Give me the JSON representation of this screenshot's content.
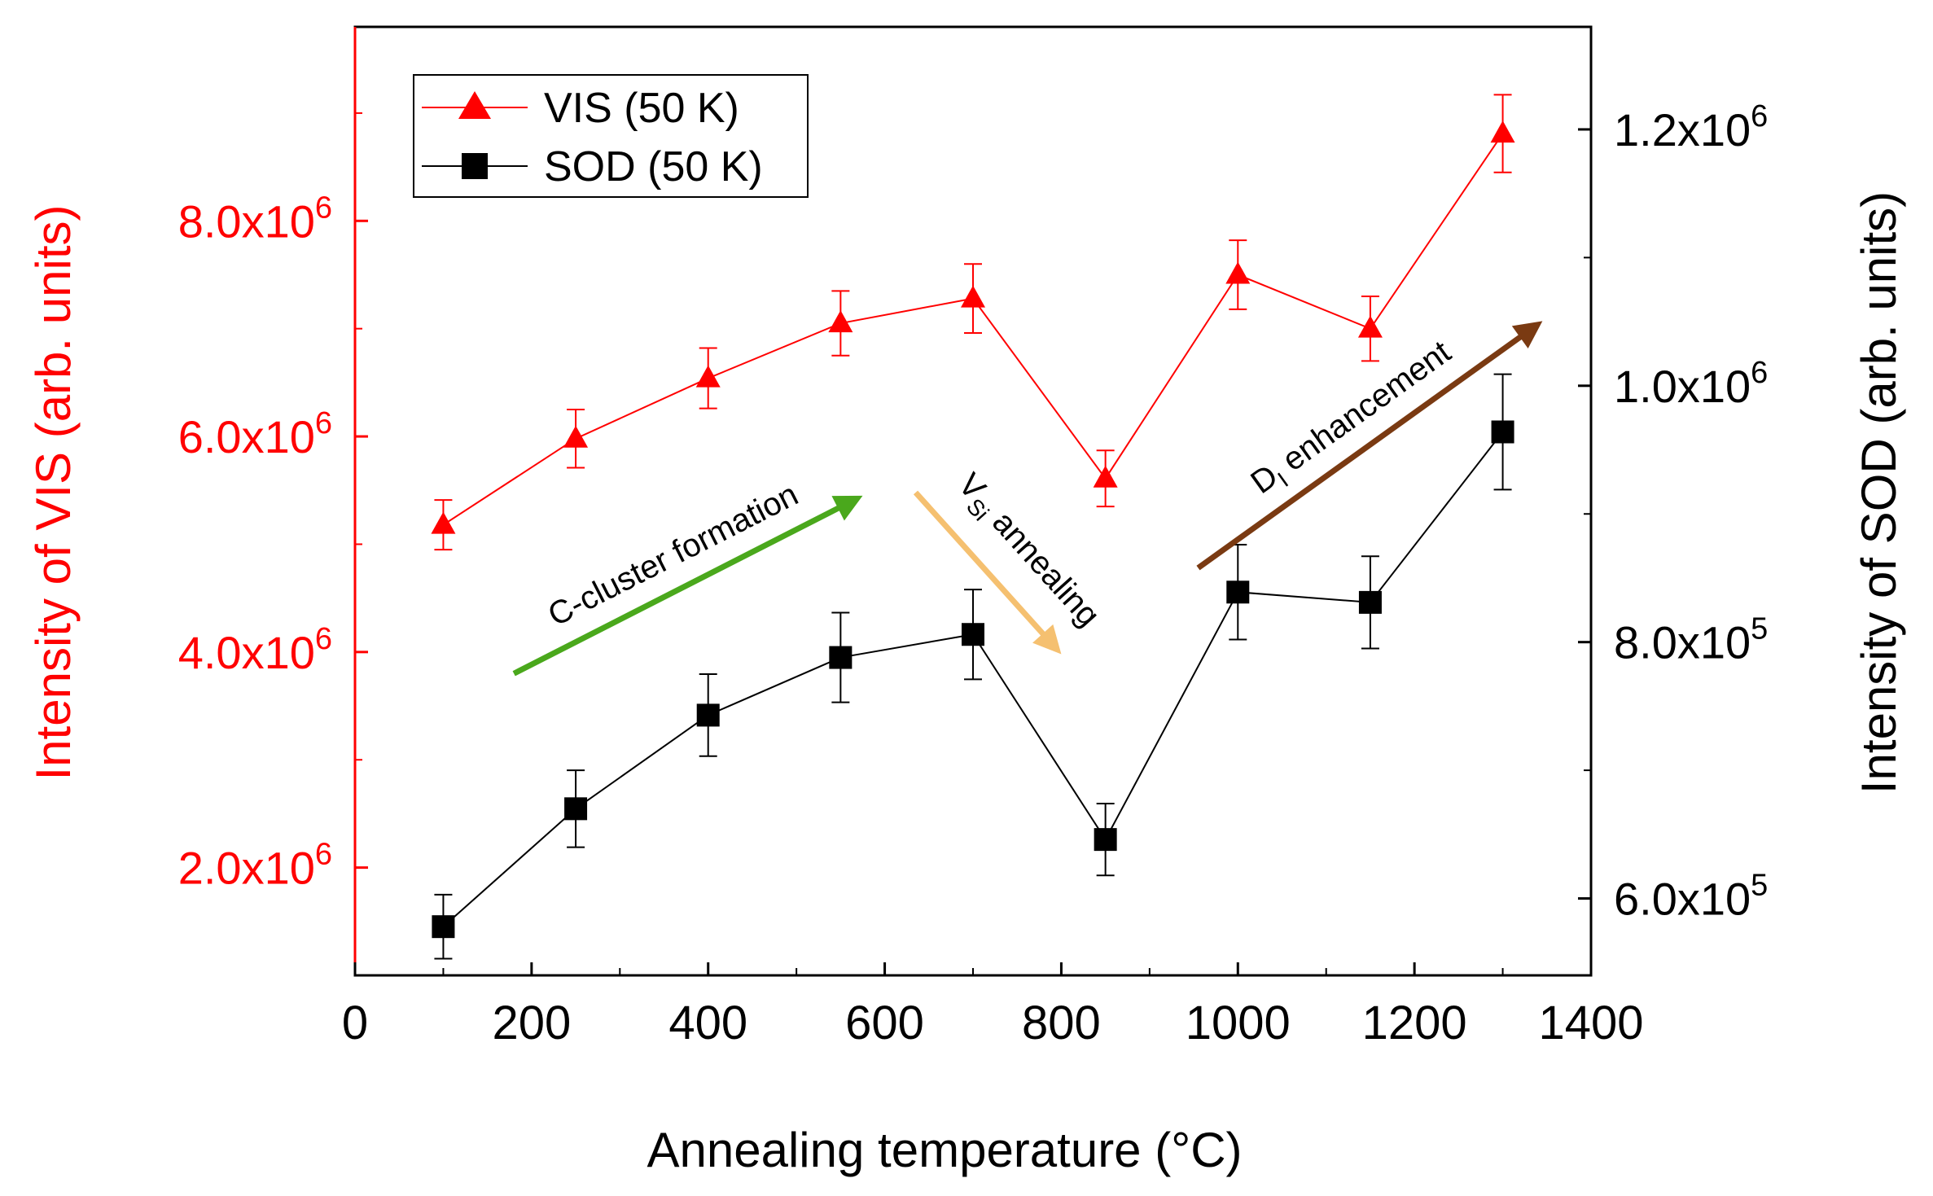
{
  "chart_data": {
    "type": "line",
    "xlabel": "Annealing temperature (°C)",
    "ylabel_left": "Intensity of VIS (arb. units)",
    "ylabel_right": "Intensity of SOD (arb. units)",
    "xlim": [
      0,
      1400
    ],
    "ylim_left": [
      1000000,
      9800000
    ],
    "ylim_right": [
      540000,
      1280000
    ],
    "x_ticks": [
      0,
      200,
      400,
      600,
      800,
      1000,
      1200,
      1400
    ],
    "x_tick_labels": [
      "0",
      "200",
      "400",
      "600",
      "800",
      "1000",
      "1200",
      "1400"
    ],
    "left_ticks": [
      {
        "value": 2000000,
        "mantissa": "2.0x10",
        "exp": "6"
      },
      {
        "value": 4000000,
        "mantissa": "4.0x10",
        "exp": "6"
      },
      {
        "value": 6000000,
        "mantissa": "6.0x10",
        "exp": "6"
      },
      {
        "value": 8000000,
        "mantissa": "8.0x10",
        "exp": "6"
      }
    ],
    "right_ticks": [
      {
        "value": 600000,
        "mantissa": "6.0x10",
        "exp": "5"
      },
      {
        "value": 800000,
        "mantissa": "8.0x10",
        "exp": "5"
      },
      {
        "value": 1000000,
        "mantissa": "1.0x10",
        "exp": "6"
      },
      {
        "value": 1200000,
        "mantissa": "1.2x10",
        "exp": "6"
      }
    ],
    "series": [
      {
        "name": "VIS (50 K)",
        "axis": "left",
        "color": "#ff0000",
        "marker": "triangle",
        "x": [
          100,
          250,
          400,
          550,
          700,
          850,
          1000,
          1150,
          1300
        ],
        "values": [
          5180000,
          5980000,
          6540000,
          7050000,
          7280000,
          5610000,
          7500000,
          7000000,
          8810000
        ],
        "errors": [
          230000,
          270000,
          280000,
          300000,
          320000,
          260000,
          320000,
          300000,
          360000
        ]
      },
      {
        "name": "SOD (50 K)",
        "axis": "right",
        "color": "#000000",
        "marker": "square",
        "x": [
          100,
          250,
          400,
          550,
          700,
          850,
          1000,
          1150,
          1300
        ],
        "values": [
          578000,
          670000,
          743000,
          788000,
          806000,
          646000,
          839000,
          831000,
          964000
        ],
        "errors": [
          25000,
          30000,
          32000,
          35000,
          35000,
          28000,
          37000,
          36000,
          45000
        ]
      }
    ],
    "annotations": [
      {
        "name": "c-cluster",
        "text": "C-cluster formation",
        "color": "#4aa81c",
        "x0": 180,
        "y0": 3800000,
        "x1": 575,
        "y1": 5450000
      },
      {
        "name": "vsi",
        "text_main": "V",
        "text_sub": "Si",
        "text_rest": " annealing",
        "color": "#f5c070",
        "x0": 635,
        "y0": 5480000,
        "x1": 800,
        "y1": 3980000
      },
      {
        "name": "di",
        "text_main": "D",
        "text_sub": "I",
        "text_rest": " enhancement",
        "color": "#7a3a12",
        "x0": 955,
        "y0": 4780000,
        "x1": 1345,
        "y1": 7070000
      }
    ]
  }
}
